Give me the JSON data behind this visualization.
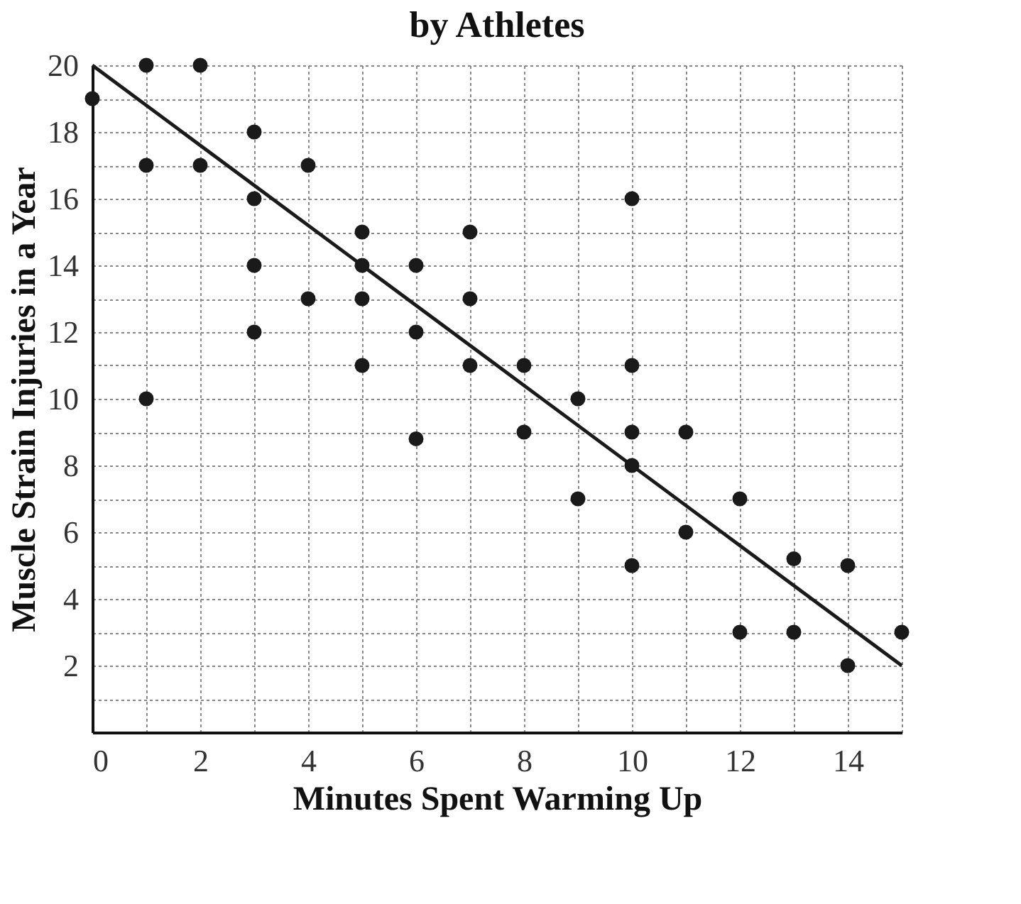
{
  "chart_data": {
    "type": "scatter",
    "title": "by Athletes",
    "xlabel": "Minutes Spent Warming Up",
    "ylabel": "Muscle Strain Injuries in a Year",
    "xlim": [
      0,
      15
    ],
    "ylim": [
      0,
      20
    ],
    "xticks": [
      0,
      {
        "value": 1,
        "label": null
      },
      2,
      {
        "value": 3,
        "label": null
      },
      4,
      {
        "value": 5,
        "label": null
      },
      6,
      {
        "value": 7,
        "label": null
      },
      8,
      {
        "value": 9,
        "label": null
      },
      10,
      {
        "value": 11,
        "label": null
      },
      12,
      {
        "value": 13,
        "label": null
      },
      14,
      {
        "value": 15,
        "label": null
      }
    ],
    "yticks": [
      {
        "value": 1,
        "label": null
      },
      2,
      {
        "value": 3,
        "label": null
      },
      4,
      {
        "value": 5,
        "label": null
      },
      6,
      {
        "value": 7,
        "label": null
      },
      8,
      {
        "value": 9,
        "label": null
      },
      10,
      {
        "value": 11,
        "label": null
      },
      12,
      {
        "value": 13,
        "label": null
      },
      14,
      {
        "value": 15,
        "label": null
      },
      16,
      {
        "value": 17,
        "label": null
      },
      18,
      {
        "value": 19,
        "label": null
      },
      20
    ],
    "grid": true,
    "marker": "circle",
    "series": [
      {
        "color": "#1a1a1a",
        "x": [
          0,
          1,
          1,
          1,
          2,
          2,
          3,
          3,
          3,
          3,
          4,
          4,
          5,
          5,
          5,
          5,
          6,
          6,
          6,
          7,
          7,
          7,
          8,
          8,
          9,
          9,
          10,
          10,
          10,
          10,
          10,
          11,
          11,
          12,
          12,
          13,
          13,
          14,
          14,
          15
        ],
        "values": [
          19,
          20,
          17,
          10,
          20,
          17,
          18,
          16,
          14,
          12,
          17,
          13,
          15,
          14,
          13,
          11,
          14,
          12,
          8.8,
          15,
          13,
          11,
          11,
          9,
          10,
          7,
          16,
          11,
          9,
          8,
          5,
          9,
          6,
          7,
          3,
          5.2,
          3,
          5,
          2,
          3
        ]
      },
      {
        "type": "line",
        "color": "#1a1a1a",
        "line_style": "solid",
        "marker": "none",
        "x": [
          0,
          15
        ],
        "values": [
          20,
          2
        ]
      }
    ]
  }
}
